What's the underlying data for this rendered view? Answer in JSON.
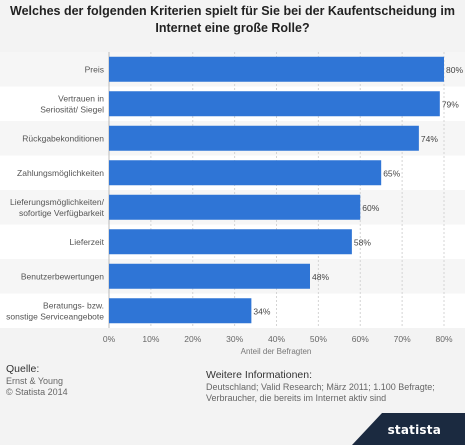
{
  "chart_data": {
    "type": "bar",
    "orientation": "horizontal",
    "title": [
      "Welches der folgenden Kriterien spielt für Sie bei der Kaufentscheidung im",
      "Internet eine große Rolle?"
    ],
    "categories": [
      [
        "Preis"
      ],
      [
        "Vertrauen in",
        "Seriosität/ Siegel"
      ],
      [
        "Rückgabekonditionen"
      ],
      [
        "Zahlungsmöglichkeiten"
      ],
      [
        "Lieferungsmöglichkeiten/",
        "sofortige Verfügbarkeit"
      ],
      [
        "Lieferzeit"
      ],
      [
        "Benutzerbewertungen"
      ],
      [
        "Beratungs- bzw.",
        "sonstige Serviceangebote"
      ]
    ],
    "values": [
      80,
      79,
      74,
      65,
      60,
      58,
      48,
      34
    ],
    "value_labels": [
      "80%",
      "79%",
      "74%",
      "65%",
      "60%",
      "58%",
      "48%",
      "34%"
    ],
    "xlabel": "Anteil der Befragten",
    "xlim": [
      0,
      80
    ],
    "xticks": [
      0,
      10,
      20,
      30,
      40,
      50,
      60,
      70,
      80
    ],
    "xtick_labels": [
      "0%",
      "10%",
      "20%",
      "30%",
      "40%",
      "50%",
      "60%",
      "70%",
      "80%"
    ],
    "grid": true,
    "bar_color": "#2f75d6"
  },
  "footer": {
    "source_label": "Quelle:",
    "source_lines": [
      "Ernst & Young",
      "© Statista 2014"
    ],
    "info_label": "Weitere Informationen:",
    "info_lines": [
      "Deutschland; Valid Research; März 2011; 1.100 Befragte;",
      "Verbraucher, die bereits im Internet aktiv sind"
    ]
  },
  "brand": {
    "name": "statista",
    "color": "#1b2a40"
  }
}
